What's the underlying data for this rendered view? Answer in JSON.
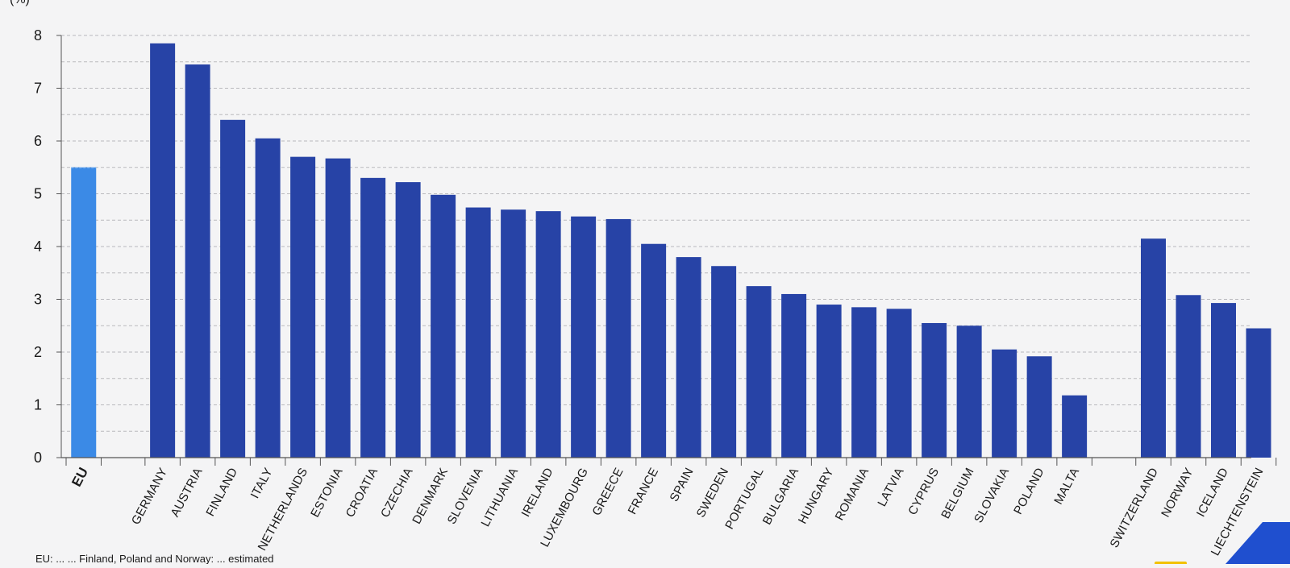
{
  "chart_data": {
    "type": "bar",
    "ylabel": "(%)",
    "ylim": [
      0,
      8
    ],
    "yticks": [
      0,
      1,
      2,
      3,
      4,
      5,
      6,
      7,
      8
    ],
    "grid": true,
    "categories": [
      "EU",
      "GERMANY",
      "AUSTRIA",
      "FINLAND",
      "ITALY",
      "NETHERLANDS",
      "ESTONIA",
      "CROATIA",
      "CZECHIA",
      "DENMARK",
      "SLOVENIA",
      "LITHUANIA",
      "IRELAND",
      "LUXEMBOURG",
      "GREECE",
      "FRANCE",
      "SPAIN",
      "SWEDEN",
      "PORTUGAL",
      "BULGARIA",
      "HUNGARY",
      "ROMANIA",
      "LATVIA",
      "CYPRUS",
      "BELGIUM",
      "SLOVAKIA",
      "POLAND",
      "MALTA",
      "SWITZERLAND",
      "NORWAY",
      "ICELAND",
      "LIECHTENSTEIN"
    ],
    "values": [
      5.5,
      7.85,
      7.45,
      6.4,
      6.05,
      5.7,
      5.67,
      5.3,
      5.22,
      4.98,
      4.74,
      4.7,
      4.67,
      4.57,
      4.52,
      4.05,
      3.8,
      3.63,
      3.25,
      3.1,
      2.9,
      2.85,
      2.82,
      2.55,
      2.5,
      2.05,
      1.92,
      1.18,
      4.15,
      3.08,
      2.93,
      2.45
    ],
    "groups": [
      {
        "name": "eu",
        "from": 0,
        "to": 0
      },
      {
        "name": "members",
        "from": 1,
        "to": 27
      },
      {
        "name": "efta",
        "from": 28,
        "to": 31
      }
    ],
    "colors": {
      "eu_bar": "#3b8ae6",
      "country_bar": "#2743a6",
      "grid": "#b9b9bd",
      "axis": "#555555"
    }
  },
  "footer": {
    "note": "EU: ... ... Finland, Poland and Norway: ... estimated"
  }
}
